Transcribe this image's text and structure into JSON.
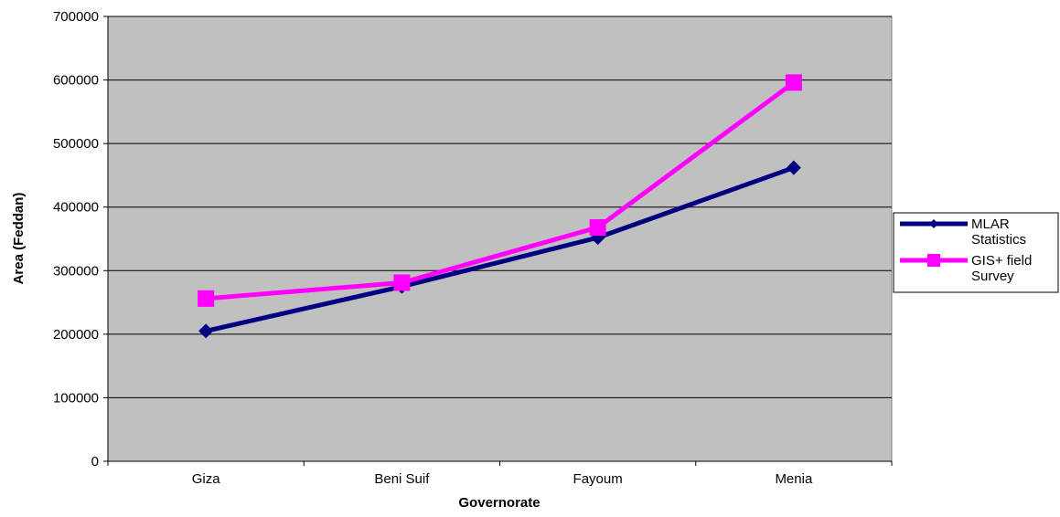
{
  "chart_data": {
    "type": "line",
    "title": "",
    "xlabel": "Governorate",
    "ylabel": "Area (Feddan)",
    "categories": [
      "Giza",
      "Beni Suif",
      "Fayoum",
      "Menia"
    ],
    "ylim": [
      0,
      700000
    ],
    "yticks": [
      0,
      100000,
      200000,
      300000,
      400000,
      500000,
      600000,
      700000
    ],
    "ytick_labels": [
      "0",
      "100000",
      "200000",
      "300000",
      "400000",
      "500000",
      "600000",
      "700000"
    ],
    "grid": "horizontal",
    "legend_position": "right",
    "plot_background": "#c0c0c0",
    "series": [
      {
        "name": "MLAR Statistics",
        "legend_lines": [
          "MLAR",
          "Statistics"
        ],
        "values": [
          205000,
          275000,
          352000,
          462000
        ],
        "color": "#000080",
        "marker": "diamond"
      },
      {
        "name": "GIS+ field Survey",
        "legend_lines": [
          "GIS+ field",
          "Survey"
        ],
        "values": [
          256000,
          281000,
          368000,
          596000
        ],
        "color": "#ff00ff",
        "marker": "square"
      }
    ]
  }
}
